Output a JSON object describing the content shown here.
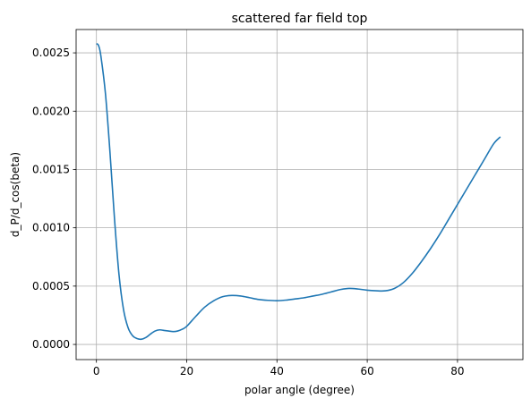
{
  "chart_data": {
    "type": "line",
    "title": "scattered far field top",
    "xlabel": "polar angle (degree)",
    "ylabel": "d_P/d_cos(beta)",
    "xlim": [
      -4.5,
      94.5
    ],
    "ylim": [
      -0.00013,
      0.0027
    ],
    "xticks": [
      0,
      20,
      40,
      60,
      80
    ],
    "xtick_labels": [
      "0",
      "20",
      "40",
      "60",
      "80"
    ],
    "yticks": [
      0.0,
      0.0005,
      0.001,
      0.0015,
      0.002,
      0.0025
    ],
    "ytick_labels": [
      "0.0000",
      "0.0005",
      "0.0010",
      "0.0015",
      "0.0020",
      "0.0025"
    ],
    "grid": true,
    "line_color": "#1f77b4",
    "series": [
      {
        "x": [
          0,
          0.5,
          1,
          2,
          3,
          4,
          5,
          6,
          7,
          8,
          9,
          10,
          11,
          12,
          13,
          14,
          15,
          16,
          17,
          18,
          19,
          20,
          22,
          24,
          26,
          28,
          30,
          32,
          34,
          36,
          38,
          40,
          42,
          44,
          46,
          48,
          50,
          52,
          54,
          56,
          58,
          60,
          62,
          64,
          66,
          68,
          70,
          72,
          74,
          76,
          78,
          80,
          82,
          84,
          86,
          88,
          89.5
        ],
        "y": [
          0.00258,
          0.00256,
          0.00247,
          0.00215,
          0.00165,
          0.00108,
          0.0006,
          0.0003,
          0.000145,
          7.5e-05,
          5e-05,
          4.5e-05,
          6e-05,
          9e-05,
          0.000115,
          0.000125,
          0.00012,
          0.000115,
          0.00011,
          0.000115,
          0.00013,
          0.000155,
          0.00024,
          0.00032,
          0.000375,
          0.00041,
          0.00042,
          0.000415,
          0.0004,
          0.000385,
          0.000378,
          0.000375,
          0.00038,
          0.00039,
          0.0004,
          0.000415,
          0.00043,
          0.00045,
          0.00047,
          0.00048,
          0.000475,
          0.000465,
          0.00046,
          0.00046,
          0.00048,
          0.00053,
          0.00061,
          0.00071,
          0.00082,
          0.00094,
          0.00107,
          0.0012,
          0.00133,
          0.00146,
          0.00159,
          0.00172,
          0.00178
        ]
      }
    ]
  }
}
